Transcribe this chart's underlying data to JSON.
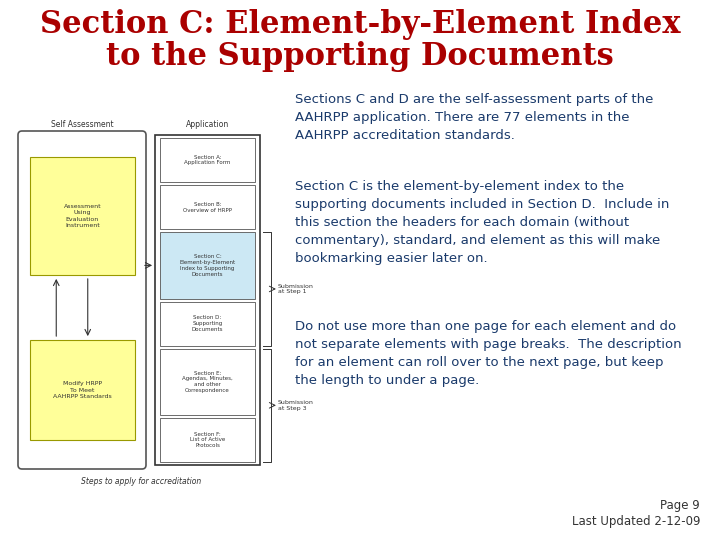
{
  "title_line1": "Section C: Element-by-Element Index",
  "title_line2": "to the Supporting Documents",
  "title_color": "#aa0000",
  "title_fontsize": 22,
  "para1": "Sections C and D are the self-assessment parts of the\nAAHRPP application. There are 77 elements in the\nAAHRPP accreditation standards.",
  "para2": "Section C is the element-by-element index to the\nsupporting documents included in Section D.  Include in\nthis section the headers for each domain (without\ncommentary), standard, and element as this will make\nbookmarking easier later on.",
  "para3": "Do not use more than one page for each element and do\nnot separate elements with page breaks.  The description\nfor an element can roll over to the next page, but keep\nthe length to under a page.",
  "text_color": "#1a3a6b",
  "text_fontsize": 9.5,
  "footer_page": "Page 9",
  "footer_date": "Last Updated 2-12-09",
  "footer_color": "#333333",
  "footer_fontsize": 8.5,
  "bg_color": "#ffffff"
}
